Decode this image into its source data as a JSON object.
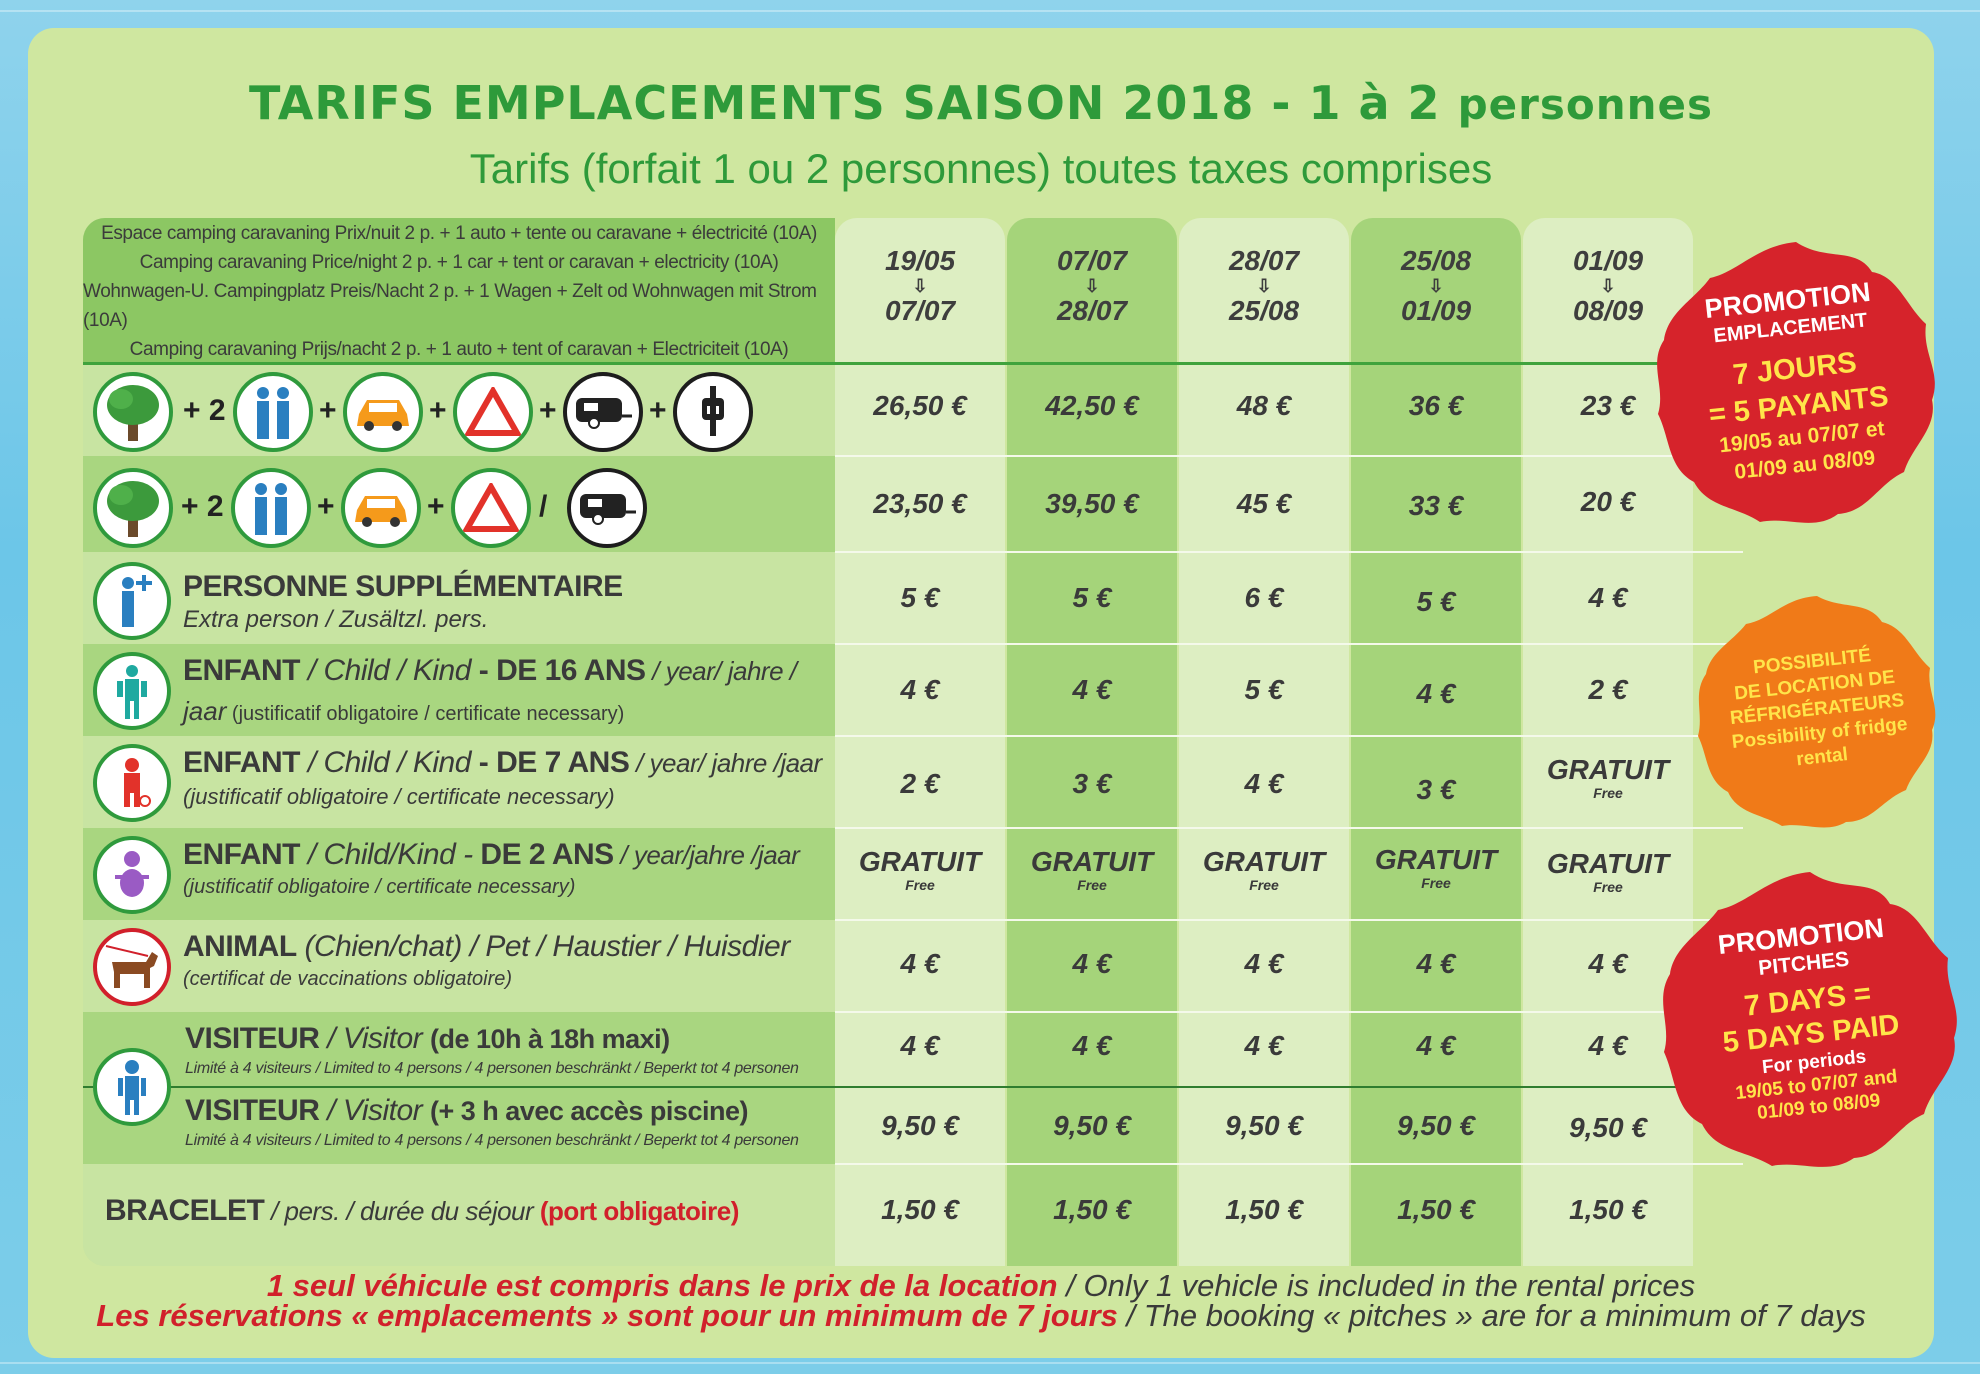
{
  "title": {
    "main": "TARIFS EMPLACEMENTS SAISON 2018 - 1 à 2 ",
    "main_end": "personnes",
    "subtitle": "Tarifs (forfait 1 ou 2 personnes) toutes taxes comprises"
  },
  "header_desc": [
    "Espace camping caravaning Prix/nuit 2 p. + 1 auto + tente ou caravane + électricité (10A)",
    "Camping caravaning Price/night 2 p. + 1 car + tent or caravan + electricity (10A)",
    "Wohnwagen-U. Campingplatz Preis/Nacht 2 p. + 1 Wagen + Zelt od Wohnwagen mit Strom (10A)",
    "Camping caravaning Prijs/nacht 2 p. + 1 auto + tent of caravan + Electriciteit (10A)"
  ],
  "periods": [
    {
      "from": "19/05",
      "to": "07/07",
      "arrow": "⇩"
    },
    {
      "from": "07/07",
      "to": "28/07",
      "arrow": "⇩"
    },
    {
      "from": "28/07",
      "to": "25/08",
      "arrow": "⇩"
    },
    {
      "from": "25/08",
      "to": "01/09",
      "arrow": "⇩"
    },
    {
      "from": "01/09",
      "to": "08/09",
      "arrow": "⇩"
    }
  ],
  "rows": {
    "pitch_elec": {
      "plus2": "+ 2",
      "plus": "+",
      "prices": [
        "26,50 €",
        "42,50 €",
        "48 €",
        "36 €",
        "23 €"
      ]
    },
    "pitch": {
      "plus2": "+ 2",
      "plus": "+",
      "slash": "/",
      "prices": [
        "23,50 €",
        "39,50 €",
        "45 €",
        "33 €",
        "20 €"
      ]
    },
    "extra_person": {
      "title": "PERSONNE SUPPLÉMENTAIRE",
      "sub": "Extra person / Zusältzl. pers.",
      "prices": [
        "5 €",
        "5 €",
        "6 €",
        "5 €",
        "4 €"
      ]
    },
    "child16": {
      "title_a": "ENFANT",
      "title_b": " / Child / Kind ",
      "title_c": "- DE 16 ANS",
      "title_d": " / year/ jahre /",
      "sub_a": "jaar",
      "sub_b": " (justificatif obligatoire / certificate necessary)",
      "prices": [
        "4 €",
        "4 €",
        "5 €",
        "4 €",
        "2 €"
      ]
    },
    "child7": {
      "title_a": "ENFANT",
      "title_b": " / Child / Kind ",
      "title_c": "- DE 7 ANS",
      "title_d": " / year/ jahre /jaar",
      "sub": "(justificatif obligatoire / certificate necessary)",
      "prices": [
        "2 €",
        "3 €",
        "4 €",
        "3 €",
        "GRATUIT"
      ],
      "free_label": "Free"
    },
    "child2": {
      "title_a": "ENFANT",
      "title_b": " / Child/Kind - ",
      "title_c": "DE 2 ANS",
      "title_d": " / year/jahre /jaar",
      "sub": "(justificatif obligatoire / certificate necessary)",
      "prices": [
        "GRATUIT",
        "GRATUIT",
        "GRATUIT",
        "GRATUIT",
        "GRATUIT"
      ],
      "free_label": "Free"
    },
    "animal": {
      "title_a": "ANIMAL",
      "title_b": " (Chien/chat) / Pet / Haustier / Huisdier",
      "sub": "(certificat de vaccinations obligatoire)",
      "prices": [
        "4 €",
        "4 €",
        "4 €",
        "4 €",
        "4 €"
      ]
    },
    "visitor": {
      "title_a": "VISITEUR",
      "title_b": " / Visitor ",
      "title_c": "(de 10h à 18h maxi)",
      "sub": "Limité à 4 visiteurs / Limited to 4 persons / 4 personen beschränkt / Beperkt tot 4 personen",
      "prices": [
        "4 €",
        "4 €",
        "4 €",
        "4 €",
        "4 €"
      ]
    },
    "visitor_pool": {
      "title_a": "VISITEUR",
      "title_b": " / Visitor ",
      "title_c": "(+ 3 h avec accès piscine)",
      "sub": "Limité à 4 visiteurs / Limited to 4 persons / 4 personen beschränkt / Beperkt tot 4 personen",
      "prices": [
        "9,50 €",
        "9,50 €",
        "9,50 €",
        "9,50 €",
        "9,50 €"
      ]
    },
    "bracelet": {
      "title_a": "BRACELET",
      "title_b": " / pers. / durée du séjour ",
      "title_c": "(port obligatoire)",
      "prices": [
        "1,50 €",
        "1,50 €",
        "1,50 €",
        "1,50 €",
        "1,50 €"
      ]
    }
  },
  "badges": {
    "promo_fr": {
      "l1": "PROMOTION",
      "l2": "EMPLACEMENT",
      "l3": "7 JOURS",
      "l4": "= 5 PAYANTS",
      "l5": "19/05 au 07/07 et",
      "l6": "01/09 au 08/09"
    },
    "fridge": {
      "l1": "POSSIBILITÉ",
      "l2": "DE LOCATION DE",
      "l3": "RÉFRIGÉRATEURS",
      "l4": "Possibility of fridge",
      "l5": "rental"
    },
    "promo_en": {
      "l1": "PROMOTION",
      "l2": "PITCHES",
      "l3": "7 DAYS =",
      "l4": "5 DAYS PAID",
      "l5": "For periods",
      "l6": "19/05 to 07/07 and",
      "l7": "01/09 to 08/09"
    }
  },
  "footer": {
    "l1_bold": "1 seul véhicule est compris dans le prix de la location",
    "l1_rest": " / Only 1 vehicle is included in the rental prices",
    "l2_bold": "Les réservations « emplacements » sont pour un minimum de 7 jours",
    "l2_rest": " / The booking « pitches » are for a minimum of 7 days"
  },
  "colors": {
    "card": "#cfe7a0",
    "title_green": "#2e9a3a",
    "badge_red": "#d1202b",
    "badge_orange": "#f07a18",
    "badge_yellow_text": "#ffe54a"
  },
  "icons": [
    "tree-icon",
    "couple-icon",
    "car-icon",
    "tent-icon",
    "caravan-icon",
    "electric-plug-icon",
    "person-plus-icon",
    "teen-icon",
    "child-icon",
    "baby-icon",
    "dog-icon",
    "visitor-icon"
  ]
}
